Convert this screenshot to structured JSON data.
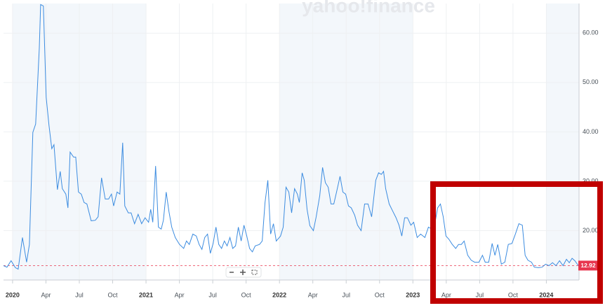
{
  "chart_data": {
    "type": "line",
    "watermark": "yahoo!finance",
    "x": [
      2019.932,
      2019.958,
      2019.989,
      2020.021,
      2020.042,
      2020.074,
      2020.105,
      2020.126,
      2020.152,
      2020.173,
      2020.2,
      2020.21,
      2020.231,
      2020.252,
      2020.273,
      2020.294,
      2020.31,
      2020.336,
      2020.357,
      2020.373,
      2020.399,
      2020.415,
      2020.431,
      2020.457,
      2020.473,
      2020.494,
      2020.515,
      2020.536,
      2020.557,
      2020.589,
      2020.62,
      2020.641,
      2020.667,
      2020.694,
      2020.72,
      2020.741,
      2020.757,
      2020.783,
      2020.804,
      2020.825,
      2020.841,
      2020.867,
      2020.888,
      2020.914,
      2020.941,
      2020.967,
      2020.993,
      2021.019,
      2021.035,
      2021.051,
      2021.072,
      2021.093,
      2021.114,
      2021.13,
      2021.151,
      2021.172,
      2021.193,
      2021.219,
      2021.251,
      2021.282,
      2021.303,
      2021.324,
      2021.351,
      2021.377,
      2021.398,
      2021.419,
      2021.44,
      2021.461,
      2021.482,
      2021.503,
      2021.524,
      2021.545,
      2021.566,
      2021.587,
      2021.608,
      2021.629,
      2021.65,
      2021.671,
      2021.692,
      2021.713,
      2021.734,
      2021.755,
      2021.776,
      2021.797,
      2021.818,
      2021.85,
      2021.871,
      2021.892,
      2021.913,
      2021.934,
      2021.955,
      2021.976,
      2022.008,
      2022.028,
      2022.049,
      2022.07,
      2022.091,
      2022.113,
      2022.134,
      2022.149,
      2022.17,
      2022.186,
      2022.207,
      2022.228,
      2022.254,
      2022.275,
      2022.302,
      2022.323,
      2022.344,
      2022.365,
      2022.386,
      2022.407,
      2022.428,
      2022.454,
      2022.475,
      2022.496,
      2022.517,
      2022.538,
      2022.564,
      2022.585,
      2022.612,
      2022.638,
      2022.664,
      2022.691,
      2022.722,
      2022.743,
      2022.764,
      2022.78,
      2022.796,
      2022.822,
      2022.848,
      2022.874,
      2022.896,
      2022.917,
      2022.938,
      2022.959,
      2022.985,
      2023.006,
      2023.032,
      2023.058,
      2023.09,
      2023.116,
      2023.142,
      2023.169,
      2023.185,
      2023.206,
      2023.227,
      2023.248,
      2023.269,
      2023.295,
      2023.321,
      2023.342,
      2023.363,
      2023.384,
      2023.411,
      2023.437,
      2023.463,
      2023.495,
      2023.521,
      2023.542,
      2023.568,
      2023.594,
      2023.615,
      2023.636,
      2023.663,
      2023.689,
      2023.715,
      2023.742,
      2023.768,
      2023.794,
      2023.82,
      2023.841,
      2023.862,
      2023.889,
      2023.91,
      2023.941,
      2023.968,
      2023.994,
      2024.02,
      2024.046,
      2024.072,
      2024.099,
      2024.125,
      2024.151,
      2024.172,
      2024.193,
      2024.214,
      2024.24
    ],
    "series": [
      {
        "color": "#3c8ce0",
        "values": [
          12.9,
          12.6,
          13.9,
          12.5,
          12.2,
          18.6,
          13.6,
          17.2,
          39.9,
          41.6,
          57,
          65.8,
          65.5,
          47,
          41.3,
          36.6,
          37.4,
          28.3,
          32,
          28.5,
          27.4,
          24.6,
          35.9,
          34.9,
          34.9,
          27.8,
          27.4,
          25.7,
          25.4,
          22,
          22.1,
          22.8,
          30.7,
          26.4,
          26.4,
          27.4,
          25,
          27.8,
          27.4,
          37.8,
          25,
          23.6,
          23.6,
          21.4,
          23.3,
          21.4,
          22.6,
          21.7,
          24.3,
          21.7,
          33.1,
          20.7,
          20.3,
          22.1,
          27.8,
          23.8,
          20.7,
          18.6,
          17.2,
          16.4,
          17.9,
          17.2,
          19.3,
          18.9,
          17.2,
          16.2,
          18.6,
          19.3,
          15.4,
          17.4,
          20.7,
          17.2,
          16.4,
          17.9,
          16.9,
          18.6,
          16.4,
          16.9,
          20.7,
          17.9,
          21.1,
          18.9,
          16.4,
          15.7,
          16.9,
          17.2,
          17.9,
          25.7,
          30.2,
          19.3,
          21.4,
          17.9,
          18.9,
          20.7,
          28.8,
          27.8,
          23.6,
          28.5,
          27.4,
          25.7,
          31.7,
          30.2,
          24.3,
          21,
          20,
          22.8,
          27.1,
          32.8,
          29.7,
          28.8,
          25.4,
          25.4,
          27.8,
          31,
          27.8,
          27.4,
          25,
          24.6,
          23.1,
          21.1,
          20,
          25.4,
          25.4,
          22.8,
          30.2,
          31.7,
          31.4,
          32,
          28.5,
          25.4,
          24,
          22.6,
          21.1,
          18.9,
          22.6,
          22.6,
          21.1,
          21.7,
          18.6,
          19.3,
          18.6,
          20.7,
          20.3,
          22.1,
          24.6,
          25.4,
          22.8,
          18.9,
          18.3,
          17.2,
          16.4,
          17.2,
          17.2,
          17.9,
          15,
          14,
          13.6,
          13.6,
          15,
          13.6,
          13.6,
          17.4,
          15,
          17.2,
          13.2,
          13.6,
          17.2,
          17.4,
          19.3,
          21.4,
          21.1,
          15,
          14,
          13.6,
          12.6,
          12.5,
          12.6,
          13.2,
          12.9,
          13.5,
          12.9,
          13.9,
          12.9,
          14.2,
          13.5,
          14.4,
          13.9,
          12.9
        ]
      }
    ],
    "last_value": 12.92,
    "last_value_color": "#e8364f",
    "xlim": [
      2019.932,
      2024.245
    ],
    "ylim": [
      10,
      66
    ],
    "xticks": [
      {
        "value": 2020,
        "label": "2020"
      },
      {
        "value": 2020.25,
        "label": "Apr"
      },
      {
        "value": 2020.5,
        "label": "Jul"
      },
      {
        "value": 2020.75,
        "label": "Oct"
      },
      {
        "value": 2021,
        "label": "2021"
      },
      {
        "value": 2021.25,
        "label": "Apr"
      },
      {
        "value": 2021.5,
        "label": "Jul"
      },
      {
        "value": 2021.75,
        "label": "Oct"
      },
      {
        "value": 2022,
        "label": "2022"
      },
      {
        "value": 2022.25,
        "label": "Apr"
      },
      {
        "value": 2022.5,
        "label": "Jul"
      },
      {
        "value": 2022.75,
        "label": "Oct"
      },
      {
        "value": 2023,
        "label": "2023"
      },
      {
        "value": 2023.25,
        "label": "Apr"
      },
      {
        "value": 2023.5,
        "label": "Jul"
      },
      {
        "value": 2023.75,
        "label": "Oct"
      },
      {
        "value": 2024,
        "label": "2024"
      }
    ],
    "yticks": [
      {
        "value": 20,
        "label": "20.00"
      },
      {
        "value": 30,
        "label": "30.00"
      },
      {
        "value": 40,
        "label": "40.00"
      },
      {
        "value": 50,
        "label": "50.00"
      },
      {
        "value": 60,
        "label": "60.00"
      }
    ],
    "grid": true
  }
}
